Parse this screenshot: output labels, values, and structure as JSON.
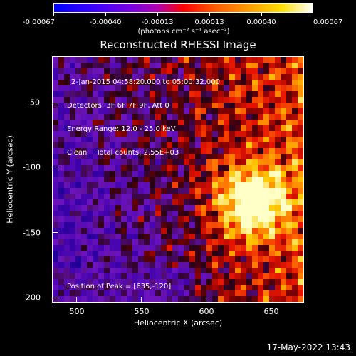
{
  "colorbar": {
    "tick_labels": [
      "-0.00067",
      "-0.00040",
      "-0.00013",
      "0.00013",
      "0.00040",
      "0.00067"
    ],
    "units": "(photons cm⁻² s⁻¹ asec⁻²)"
  },
  "title": "Reconstructed RHESSI Image",
  "info": {
    "time_range": "2-Jan-2015 04:58:20.000 to 05:00:32.000",
    "detectors": "Detectors: 3F 6F 7F 9F, Att 0",
    "energy_range": "Energy Range: 12.0 - 25.0 keV",
    "clean": "Clean    Total counts: 2.55E+03",
    "peak": "Position of Peak = [635,-120]"
  },
  "axes": {
    "xlabel": "Heliocentric X (arcsec)",
    "ylabel": "Heliocentric Y (arcsec)",
    "x_ticks": [
      "500",
      "550",
      "600",
      "650"
    ],
    "y_ticks": [
      "-50",
      "-100",
      "-150",
      "-200"
    ]
  },
  "timestamp": "17-May-2022 13:43",
  "colors": {
    "background": "#000000",
    "foreground": "#ffffff"
  }
}
